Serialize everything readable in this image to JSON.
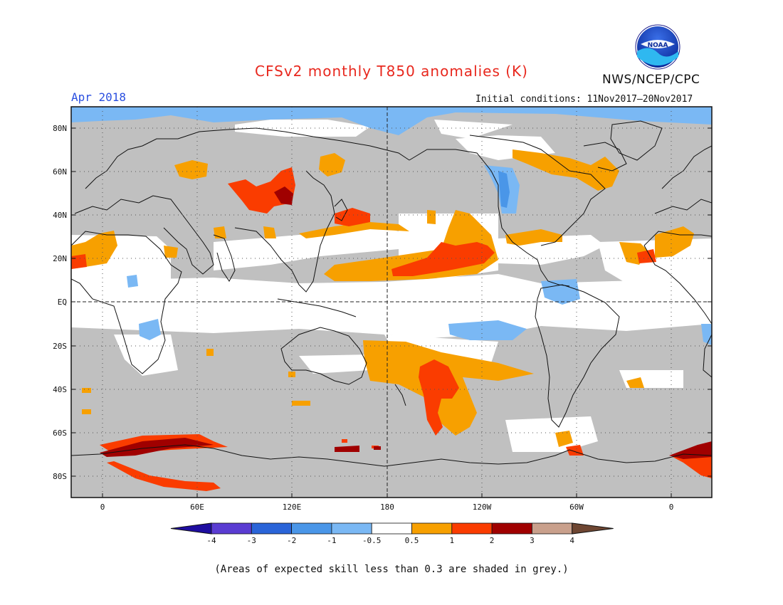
{
  "header": {
    "title": "CFSv2 monthly T850 anomalies (K)",
    "agency": "NWS/NCEP/CPC",
    "valid_month": "Apr 2018",
    "initial_conditions": "Initial conditions: 11Nov2017–20Nov2017"
  },
  "logo": {
    "text": "NOAA"
  },
  "map": {
    "lat_labels": [
      "80N",
      "60N",
      "40N",
      "20N",
      "EQ",
      "20S",
      "40S",
      "60S",
      "80S"
    ],
    "lon_labels": [
      "0",
      "60E",
      "120E",
      "180",
      "120W",
      "60W",
      "0"
    ]
  },
  "colorbar": {
    "labels": [
      "-4",
      "-3",
      "-2",
      "-1",
      "-0.5",
      "0.5",
      "1",
      "2",
      "3",
      "4"
    ],
    "colors": {
      "lt_minus4": "#1e0da0",
      "minus4_minus3": "#5a3cd2",
      "minus3_minus2": "#2a64d8",
      "minus2_minus1": "#4a96e8",
      "minus1_minus05": "#7ab8f4",
      "neutral": "#ffffff",
      "p05_1": "#f7a000",
      "p1_2": "#fa3c00",
      "p2_3": "#a00000",
      "p3_4": "#c9a08c",
      "gt4": "#6e4632"
    }
  },
  "legend_note": "(Areas of expected skill less than 0.3 are shaded in grey.)"
}
